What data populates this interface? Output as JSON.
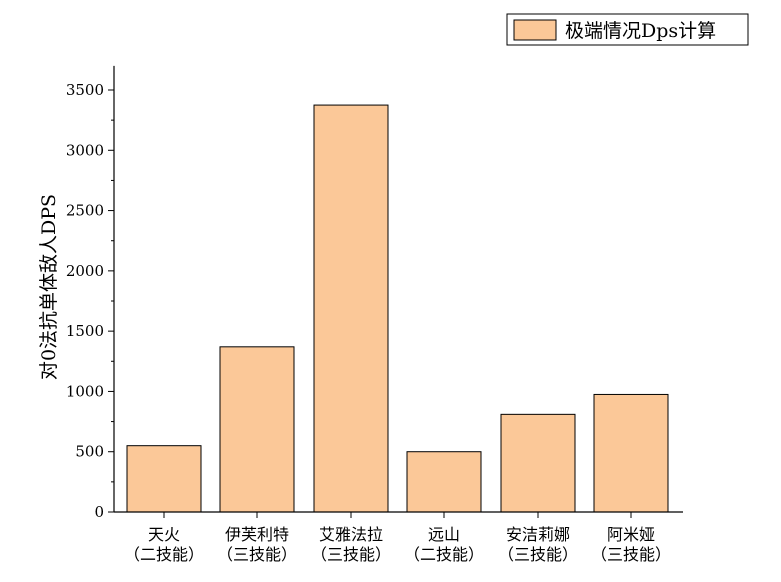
{
  "chart_data": {
    "type": "bar",
    "title": "",
    "xlabel": "",
    "ylabel": "对0法抗单体敌人DPS",
    "categories": [
      [
        "天火",
        "（二技能）"
      ],
      [
        "伊芙利特",
        "（三技能）"
      ],
      [
        "艾雅法拉",
        "（三技能）"
      ],
      [
        "远山",
        "（二技能）"
      ],
      [
        "安洁莉娜",
        "（三技能）"
      ],
      [
        "阿米娅",
        "（三技能）"
      ]
    ],
    "series": [
      {
        "name": "极端情况Dps计算",
        "values": [
          550,
          1370,
          3375,
          500,
          810,
          975
        ]
      }
    ],
    "ylim": [
      0,
      3700
    ],
    "yticks": [
      0,
      500,
      1000,
      1500,
      2000,
      2500,
      3000,
      3500
    ],
    "grid": false,
    "legend": "top-right",
    "colors": {
      "bar_fill": "#FBC898",
      "bar_stroke": "#000000",
      "axis": "#000000"
    }
  }
}
